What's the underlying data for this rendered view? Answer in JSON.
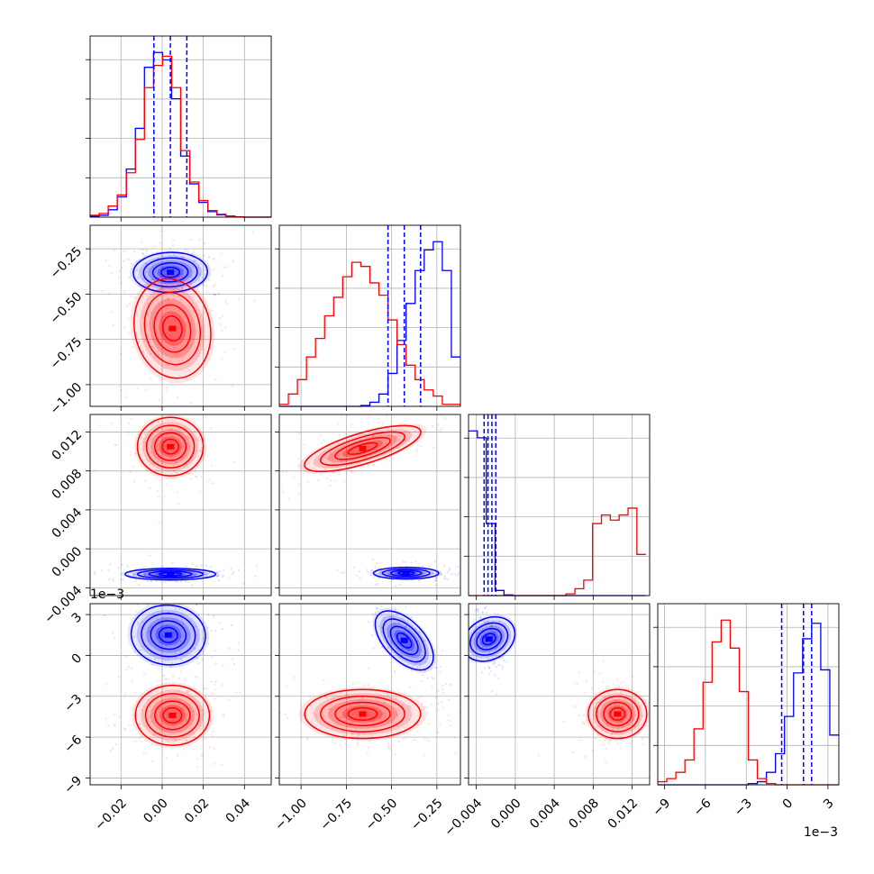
{
  "chart_data": {
    "type": "corner",
    "parameters": 4,
    "colors": {
      "series_a": "#0000ff",
      "series_b": "#ff0000"
    },
    "grid": true,
    "axes": [
      {
        "ticks": [
          "−0.02",
          "0.00",
          "0.02",
          "0.04"
        ],
        "tick_values": [
          -0.02,
          0.0,
          0.02,
          0.04
        ],
        "range": [
          -0.035,
          0.053
        ]
      },
      {
        "ticks": [
          "−0.25",
          "−0.50",
          "−0.75",
          "−1.00"
        ],
        "tick_values": [
          -0.25,
          -0.5,
          -0.75,
          -1.0
        ],
        "range": [
          -1.12,
          -0.12
        ]
      },
      {
        "ticks": [
          "0.012",
          "0.008",
          "0.004",
          "0.000",
          "−0.004"
        ],
        "tick_values": [
          0.012,
          0.008,
          0.004,
          0.0,
          -0.004
        ],
        "range": [
          -0.0048,
          0.0138
        ]
      },
      {
        "ticks": [
          "3",
          "0",
          "−3",
          "−6",
          "−9"
        ],
        "tick_values": [
          3,
          0,
          -3,
          -6,
          -9
        ],
        "range": [
          -9.5,
          3.8
        ],
        "offset_label": "1e−3"
      }
    ],
    "histograms": [
      {
        "param": 0,
        "bins": [
          -0.035,
          -0.0306,
          -0.0262,
          -0.0218,
          -0.0174,
          -0.013,
          -0.0086,
          -0.0042,
          0.0002,
          0.0046,
          0.009,
          0.0134,
          0.0178,
          0.0222,
          0.0266,
          0.031,
          0.0354,
          0.0398,
          0.0442,
          0.0486,
          0.053
        ],
        "series": [
          {
            "name": "",
            "color": "#0000ff",
            "values": [
              0.2,
              0.5,
              2.0,
              5.5,
              13.0,
              24.0,
              40.5,
              44.5,
              42.5,
              32.0,
              16.5,
              9.0,
              4.0,
              1.5,
              0.6,
              0.3,
              0.1,
              0,
              0,
              0
            ]
          },
          {
            "name": "",
            "color": "#ff0000",
            "values": [
              0.5,
              1.0,
              3.0,
              6.0,
              12.0,
              21.0,
              35.0,
              41.0,
              43.5,
              35.0,
              18.0,
              9.5,
              4.5,
              1.8,
              0.8,
              0.3,
              0.1,
              0,
              0,
              0
            ]
          }
        ],
        "quantiles": [
          -0.004,
          0.004,
          0.012
        ]
      },
      {
        "param": 1,
        "bins": [
          -1.12,
          -1.07,
          -1.02,
          -0.97,
          -0.92,
          -0.87,
          -0.82,
          -0.77,
          -0.72,
          -0.67,
          -0.62,
          -0.57,
          -0.52,
          -0.47,
          -0.42,
          -0.37,
          -0.32,
          -0.27,
          -0.22,
          -0.17,
          -0.12
        ],
        "series": [
          {
            "name": "",
            "color": "#0000ff",
            "values": [
              0,
              0,
              0,
              0,
              0,
              0,
              0,
              0,
              0,
              0.2,
              1.0,
              3.0,
              8.0,
              16.0,
              25.0,
              33.0,
              38.0,
              40.0,
              33.0,
              12.0
            ]
          },
          {
            "name": "",
            "color": "#ff0000",
            "values": [
              0.5,
              3.0,
              6.5,
              12.0,
              16.5,
              22.0,
              26.5,
              31.5,
              35.0,
              34.0,
              30.0,
              27.0,
              21.0,
              15.0,
              10.0,
              6.5,
              4.0,
              2.5,
              0.5,
              0.5
            ]
          }
        ],
        "quantiles": [
          -0.52,
          -0.43,
          -0.34
        ]
      },
      {
        "param": 2,
        "bins": [
          -0.0048,
          -0.00389,
          -0.00298,
          -0.00207,
          -0.00116,
          -0.00025,
          0.00066,
          0.00157,
          0.00248,
          0.00339,
          0.0043,
          0.00521,
          0.00612,
          0.00703,
          0.00794,
          0.00885,
          0.00976,
          0.01067,
          0.01158,
          0.01249,
          0.0134
        ],
        "series": [
          {
            "name": "",
            "color": "#0000ff",
            "values": [
              48.0,
              46.0,
              21.0,
              1.5,
              0.2,
              0,
              0,
              0,
              0,
              0,
              0,
              0,
              0,
              0,
              0,
              0,
              0,
              0,
              0,
              0
            ]
          },
          {
            "name": "",
            "color": "#ff0000",
            "values": [
              0,
              0,
              0,
              0,
              0,
              0,
              0,
              0,
              0,
              0,
              0,
              0.5,
              2.0,
              4.5,
              21.0,
              23.5,
              22.0,
              23.5,
              25.5,
              12.0
            ]
          }
        ],
        "quantiles": [
          -0.0032,
          -0.0028,
          -0.0024,
          -0.002
        ]
      },
      {
        "param": 3,
        "bins": [
          -9.5,
          -8.835,
          -8.17,
          -7.505,
          -6.84,
          -6.175,
          -5.51,
          -4.845,
          -4.18,
          -3.515,
          -2.85,
          -2.185,
          -1.52,
          -0.855,
          -0.19,
          0.475,
          1.14,
          1.805,
          2.47,
          3.135,
          3.8
        ],
        "series": [
          {
            "name": "",
            "color": "#0000ff",
            "values": [
              0,
              0,
              0,
              0,
              0,
              0,
              0,
              0,
              0,
              0,
              0.2,
              0.5,
              2.0,
              5.0,
              11.0,
              18.0,
              23.5,
              26.0,
              18.5,
              8.0
            ]
          },
          {
            "name": "",
            "color": "#ff0000",
            "values": [
              0.5,
              1.0,
              2.0,
              4.0,
              9.0,
              16.5,
              23.0,
              26.5,
              22.0,
              15.0,
              4.0,
              1.0,
              0.2,
              0,
              0,
              0,
              0,
              0,
              0,
              0
            ]
          }
        ],
        "quantiles": [
          -0.4,
          1.2,
          1.8
        ]
      }
    ],
    "pairs": [
      {
        "x": 0,
        "y": 1,
        "series": [
          {
            "color": "#0000ff",
            "center": [
              0.004,
              -0.38
            ],
            "spread": [
              0.009,
              0.055
            ],
            "tilt": 0.05
          },
          {
            "color": "#ff0000",
            "center": [
              0.005,
              -0.69
            ],
            "spread": [
              0.009,
              0.14
            ],
            "tilt": 0.15
          }
        ]
      },
      {
        "x": 0,
        "y": 2,
        "series": [
          {
            "color": "#ff0000",
            "center": [
              0.004,
              0.0105
            ],
            "spread": [
              0.008,
              0.0015
            ],
            "tilt": 0
          },
          {
            "color": "#0000ff",
            "center": [
              0.004,
              -0.0026
            ],
            "spread": [
              0.011,
              0.0003
            ],
            "tilt": 0
          }
        ]
      },
      {
        "x": 0,
        "y": 3,
        "series": [
          {
            "color": "#0000ff",
            "center": [
              0.003,
              1.5
            ],
            "spread": [
              0.009,
              1.1
            ],
            "tilt": -0.1
          },
          {
            "color": "#ff0000",
            "center": [
              0.005,
              -4.4
            ],
            "spread": [
              0.009,
              1.1
            ],
            "tilt": 0
          }
        ]
      },
      {
        "x": 1,
        "y": 2,
        "series": [
          {
            "color": "#ff0000",
            "center": [
              -0.66,
              0.0103
            ],
            "spread": [
              0.16,
              0.0012
            ],
            "tilt": 0.75
          },
          {
            "color": "#0000ff",
            "center": [
              -0.42,
              -0.0025
            ],
            "spread": [
              0.09,
              0.0003
            ],
            "tilt": 0
          }
        ]
      },
      {
        "x": 1,
        "y": 3,
        "series": [
          {
            "color": "#0000ff",
            "center": [
              -0.43,
              1.1
            ],
            "spread": [
              0.07,
              1.2
            ],
            "tilt": -0.8
          },
          {
            "color": "#ff0000",
            "center": [
              -0.66,
              -4.3
            ],
            "spread": [
              0.16,
              0.9
            ],
            "tilt": 0
          }
        ]
      },
      {
        "x": 2,
        "y": 3,
        "series": [
          {
            "color": "#0000ff",
            "center": [
              -0.0027,
              1.2
            ],
            "spread": [
              0.0005,
              1.2
            ],
            "tilt": -0.55
          },
          {
            "color": "#ff0000",
            "center": [
              0.0105,
              -4.3
            ],
            "spread": [
              0.0015,
              0.9
            ],
            "tilt": 0
          }
        ]
      }
    ]
  }
}
